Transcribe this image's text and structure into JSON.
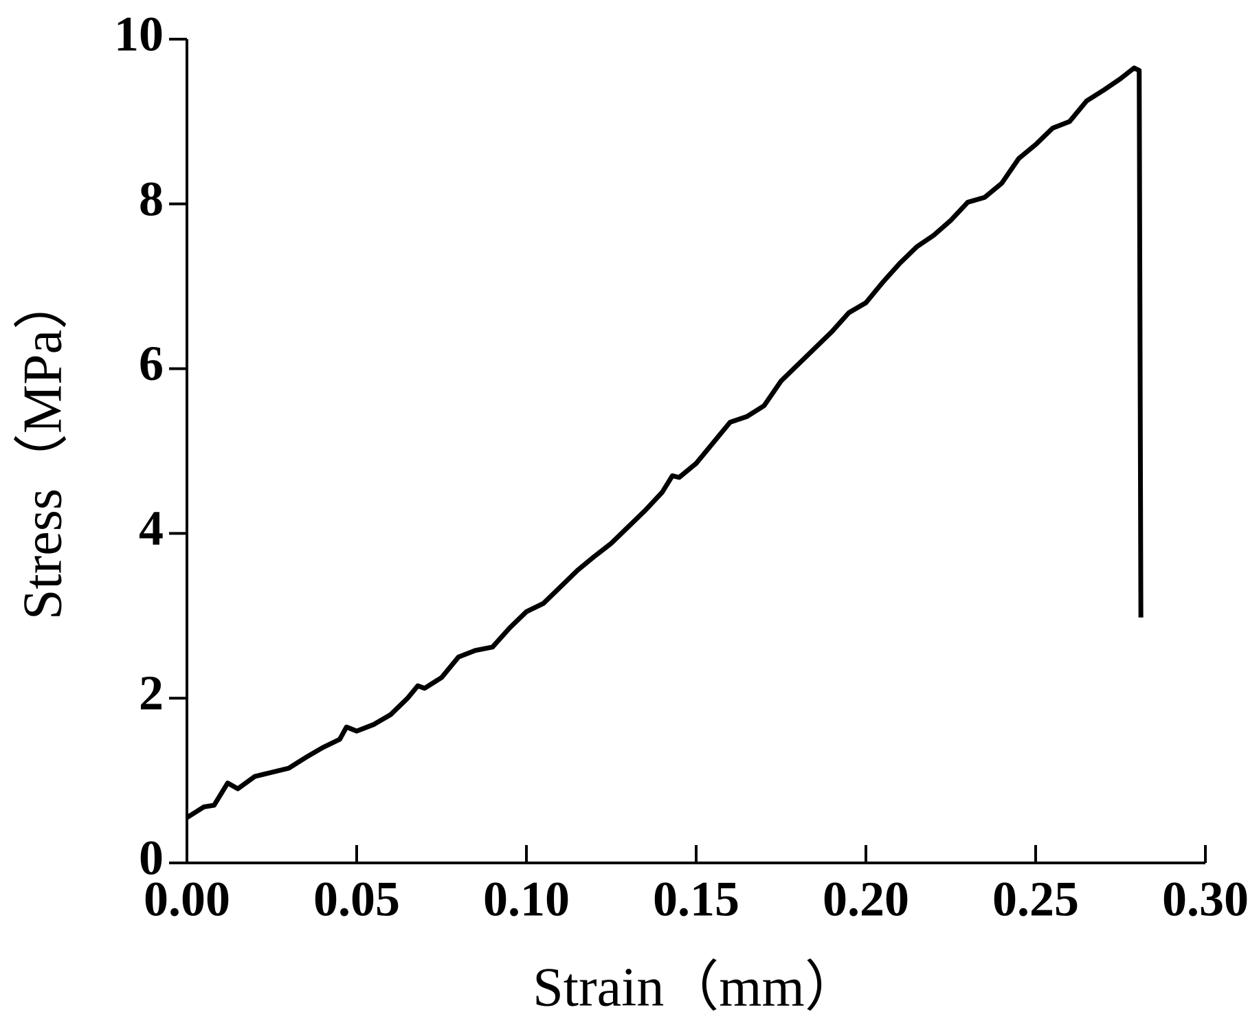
{
  "chart_data": {
    "type": "line",
    "x_label": "Strain（mm）",
    "y_label": "Stress（MPa）",
    "x": [
      0,
      0.005,
      0.008,
      0.012,
      0.015,
      0.02,
      0.025,
      0.03,
      0.035,
      0.04,
      0.045,
      0.047,
      0.05,
      0.055,
      0.06,
      0.065,
      0.068,
      0.07,
      0.075,
      0.08,
      0.085,
      0.09,
      0.095,
      0.1,
      0.105,
      0.11,
      0.115,
      0.12,
      0.125,
      0.13,
      0.135,
      0.14,
      0.143,
      0.145,
      0.15,
      0.155,
      0.16,
      0.165,
      0.17,
      0.175,
      0.18,
      0.185,
      0.19,
      0.195,
      0.2,
      0.205,
      0.21,
      0.215,
      0.22,
      0.225,
      0.23,
      0.235,
      0.24,
      0.245,
      0.25,
      0.255,
      0.26,
      0.265,
      0.27,
      0.275,
      0.279,
      0.2805,
      0.281
    ],
    "values": [
      0.55,
      0.68,
      0.7,
      0.97,
      0.9,
      1.05,
      1.1,
      1.15,
      1.28,
      1.4,
      1.5,
      1.65,
      1.6,
      1.68,
      1.8,
      2.0,
      2.15,
      2.12,
      2.25,
      2.5,
      2.58,
      2.62,
      2.85,
      3.05,
      3.15,
      3.35,
      3.55,
      3.72,
      3.88,
      4.08,
      4.28,
      4.5,
      4.7,
      4.68,
      4.85,
      5.1,
      5.35,
      5.42,
      5.55,
      5.85,
      6.05,
      6.25,
      6.45,
      6.68,
      6.8,
      7.05,
      7.28,
      7.48,
      7.62,
      7.8,
      8.02,
      8.08,
      8.25,
      8.55,
      8.72,
      8.92,
      9.0,
      9.25,
      9.38,
      9.52,
      9.65,
      9.62,
      2.98
    ],
    "color": "#000000",
    "xlim": [
      0,
      0.3
    ],
    "ylim": [
      0,
      10
    ],
    "xticks": [
      {
        "value": 0,
        "label": "0.00"
      },
      {
        "value": 0.05,
        "label": "0.05"
      },
      {
        "value": 0.1,
        "label": "0.10"
      },
      {
        "value": 0.15,
        "label": "0.15"
      },
      {
        "value": 0.2,
        "label": "0.20"
      },
      {
        "value": 0.25,
        "label": "0.25"
      },
      {
        "value": 0.3,
        "label": "0.30"
      }
    ],
    "yticks": [
      0,
      2,
      4,
      6,
      8,
      10
    ],
    "grid": false
  }
}
